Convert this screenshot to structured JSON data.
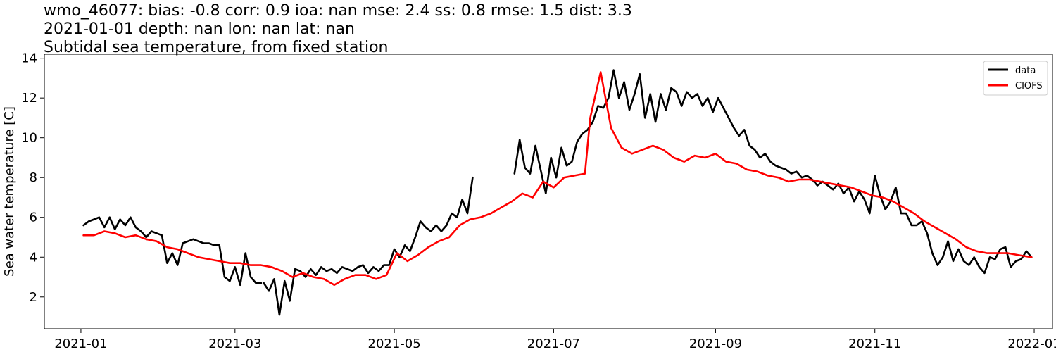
{
  "chart_data": {
    "type": "line",
    "title_lines": [
      "wmo_46077: bias: -0.8  corr: 0.9  ioa: nan  mse: 2.4  ss: 0.8  rmse: 1.5  dist: 3.3",
      "2021-01-01 depth: nan lon: nan lat: nan",
      "Subtidal sea temperature, from fixed station"
    ],
    "xlabel": "",
    "ylabel": "Sea water temperature [C]",
    "x_range": [
      "2020-12-18",
      "2022-01-08"
    ],
    "ylim": [
      0.4,
      14.2
    ],
    "y_ticks": [
      2,
      4,
      6,
      8,
      10,
      12,
      14
    ],
    "x_ticks": [
      "2021-01-01",
      "2021-03-01",
      "2021-05-01",
      "2021-07-01",
      "2021-09-01",
      "2021-11-01",
      "2022-01-01"
    ],
    "x_tick_labels": [
      "2021-01",
      "2021-03",
      "2021-05",
      "2021-07",
      "2021-09",
      "2021-11",
      "2022-01"
    ],
    "grid": false,
    "legend_position": "top-right",
    "series": [
      {
        "name": "data",
        "color": "#000000",
        "segments": [
          {
            "x": [
              "2021-01-02",
              "2021-01-04",
              "2021-01-06",
              "2021-01-08",
              "2021-01-10",
              "2021-01-12",
              "2021-01-14",
              "2021-01-16",
              "2021-01-18",
              "2021-01-20",
              "2021-01-22",
              "2021-01-24",
              "2021-01-26",
              "2021-01-28",
              "2021-01-30",
              "2021-02-01",
              "2021-02-03",
              "2021-02-05",
              "2021-02-07",
              "2021-02-09",
              "2021-02-11",
              "2021-02-13",
              "2021-02-15",
              "2021-02-17",
              "2021-02-19",
              "2021-02-21",
              "2021-02-23",
              "2021-02-25",
              "2021-02-27",
              "2021-03-01",
              "2021-03-03",
              "2021-03-05",
              "2021-03-07",
              "2021-03-09",
              "2021-03-11"
            ],
            "y": [
              5.6,
              5.8,
              5.9,
              6.0,
              5.5,
              6.0,
              5.4,
              5.9,
              5.6,
              6.0,
              5.5,
              5.3,
              5.0,
              5.3,
              5.2,
              5.1,
              3.7,
              4.2,
              3.6,
              4.7,
              4.8,
              4.9,
              4.8,
              4.7,
              4.7,
              4.6,
              4.6,
              3.0,
              2.8,
              3.5,
              2.6,
              4.2,
              3.0,
              2.7,
              2.7
            ]
          },
          {
            "x": [
              "2021-03-12",
              "2021-03-14",
              "2021-03-16",
              "2021-03-18",
              "2021-03-20",
              "2021-03-22",
              "2021-03-24",
              "2021-03-26",
              "2021-03-28",
              "2021-03-30",
              "2021-04-01",
              "2021-04-03",
              "2021-04-05",
              "2021-04-07",
              "2021-04-09",
              "2021-04-11",
              "2021-04-13",
              "2021-04-15",
              "2021-04-17",
              "2021-04-19",
              "2021-04-21",
              "2021-04-23",
              "2021-04-25",
              "2021-04-27",
              "2021-04-29",
              "2021-05-01",
              "2021-05-03",
              "2021-05-05",
              "2021-05-07",
              "2021-05-09",
              "2021-05-11",
              "2021-05-13",
              "2021-05-15",
              "2021-05-17",
              "2021-05-19",
              "2021-05-21",
              "2021-05-23",
              "2021-05-25",
              "2021-05-27",
              "2021-05-29",
              "2021-05-31"
            ],
            "y": [
              2.7,
              2.3,
              2.9,
              1.1,
              2.8,
              1.8,
              3.4,
              3.3,
              3.0,
              3.4,
              3.1,
              3.5,
              3.3,
              3.4,
              3.2,
              3.5,
              3.4,
              3.3,
              3.5,
              3.6,
              3.2,
              3.5,
              3.3,
              3.6,
              3.6,
              4.4,
              4.0,
              4.6,
              4.3,
              5.0,
              5.8,
              5.5,
              5.3,
              5.6,
              5.3,
              5.6,
              6.2,
              6.0,
              6.9,
              6.2,
              8.0
            ]
          },
          {
            "x": [
              "2021-06-16",
              "2021-06-18",
              "2021-06-20",
              "2021-06-22",
              "2021-06-24",
              "2021-06-26",
              "2021-06-28",
              "2021-06-30",
              "2021-07-02",
              "2021-07-04",
              "2021-07-06",
              "2021-07-08",
              "2021-07-10",
              "2021-07-12",
              "2021-07-14",
              "2021-07-16",
              "2021-07-18",
              "2021-07-20",
              "2021-07-22",
              "2021-07-24",
              "2021-07-26",
              "2021-07-28",
              "2021-07-30",
              "2021-08-01",
              "2021-08-03",
              "2021-08-05",
              "2021-08-07",
              "2021-08-09",
              "2021-08-11",
              "2021-08-13",
              "2021-08-15",
              "2021-08-17",
              "2021-08-19",
              "2021-08-21",
              "2021-08-23",
              "2021-08-25",
              "2021-08-27",
              "2021-08-29",
              "2021-08-31",
              "2021-09-02",
              "2021-09-04",
              "2021-09-06",
              "2021-09-08",
              "2021-09-10",
              "2021-09-12",
              "2021-09-14",
              "2021-09-16",
              "2021-09-18",
              "2021-09-20",
              "2021-09-22",
              "2021-09-24",
              "2021-09-26",
              "2021-09-28",
              "2021-09-30",
              "2021-10-02",
              "2021-10-04",
              "2021-10-06",
              "2021-10-08",
              "2021-10-10",
              "2021-10-12",
              "2021-10-14",
              "2021-10-16",
              "2021-10-18",
              "2021-10-20",
              "2021-10-22",
              "2021-10-24",
              "2021-10-26",
              "2021-10-28",
              "2021-10-30",
              "2021-11-01",
              "2021-11-03",
              "2021-11-05",
              "2021-11-07",
              "2021-11-09",
              "2021-11-11",
              "2021-11-13",
              "2021-11-15",
              "2021-11-17",
              "2021-11-19",
              "2021-11-21",
              "2021-11-23",
              "2021-11-25",
              "2021-11-27",
              "2021-11-29",
              "2021-12-01",
              "2021-12-03",
              "2021-12-05",
              "2021-12-07",
              "2021-12-09",
              "2021-12-11",
              "2021-12-13",
              "2021-12-15",
              "2021-12-17",
              "2021-12-19",
              "2021-12-21",
              "2021-12-23",
              "2021-12-25",
              "2021-12-27",
              "2021-12-29",
              "2021-12-31"
            ],
            "y": [
              8.2,
              9.9,
              8.5,
              8.2,
              9.6,
              8.4,
              7.2,
              9.0,
              8.0,
              9.5,
              8.6,
              8.8,
              9.8,
              10.2,
              10.4,
              10.8,
              11.6,
              11.5,
              12.0,
              13.4,
              12.0,
              12.8,
              11.4,
              12.2,
              13.2,
              11.0,
              12.2,
              10.8,
              12.2,
              11.4,
              12.5,
              12.3,
              11.6,
              12.3,
              12.0,
              12.2,
              11.6,
              12.0,
              11.3,
              12.0,
              11.5,
              11.0,
              10.5,
              10.1,
              10.4,
              9.6,
              9.4,
              9.0,
              9.2,
              8.8,
              8.6,
              8.5,
              8.4,
              8.2,
              8.3,
              8.0,
              8.1,
              7.9,
              7.6,
              7.8,
              7.6,
              7.4,
              7.7,
              7.2,
              7.5,
              6.8,
              7.3,
              6.9,
              6.2,
              8.1,
              7.1,
              6.4,
              6.8,
              7.5,
              6.2,
              6.2,
              5.6,
              5.6,
              5.8,
              5.2,
              4.2,
              3.6,
              4.0,
              4.8,
              3.8,
              4.4,
              3.8,
              3.6,
              4.0,
              3.5,
              3.2,
              4.0,
              3.9,
              4.4,
              4.5,
              3.5,
              3.8,
              3.9,
              4.3,
              4.0
            ]
          }
        ]
      },
      {
        "name": "CIOFS",
        "color": "#ff0000",
        "segments": [
          {
            "x": [
              "2021-01-02",
              "2021-01-06",
              "2021-01-10",
              "2021-01-14",
              "2021-01-18",
              "2021-01-22",
              "2021-01-26",
              "2021-01-30",
              "2021-02-03",
              "2021-02-07",
              "2021-02-11",
              "2021-02-15",
              "2021-02-19",
              "2021-02-23",
              "2021-02-27",
              "2021-03-03",
              "2021-03-07",
              "2021-03-11",
              "2021-03-15",
              "2021-03-19",
              "2021-03-23",
              "2021-03-27",
              "2021-03-31",
              "2021-04-04",
              "2021-04-08",
              "2021-04-12",
              "2021-04-16",
              "2021-04-20",
              "2021-04-24",
              "2021-04-28",
              "2021-05-02",
              "2021-05-06",
              "2021-05-10",
              "2021-05-14",
              "2021-05-18",
              "2021-05-22",
              "2021-05-26",
              "2021-05-30",
              "2021-06-03",
              "2021-06-07",
              "2021-06-11",
              "2021-06-15",
              "2021-06-19",
              "2021-06-23",
              "2021-06-27",
              "2021-07-01",
              "2021-07-05",
              "2021-07-09",
              "2021-07-13",
              "2021-07-15",
              "2021-07-19",
              "2021-07-23",
              "2021-07-27",
              "2021-07-31",
              "2021-08-04",
              "2021-08-08",
              "2021-08-12",
              "2021-08-16",
              "2021-08-20",
              "2021-08-24",
              "2021-08-28",
              "2021-09-01",
              "2021-09-05",
              "2021-09-09",
              "2021-09-13",
              "2021-09-17",
              "2021-09-21",
              "2021-09-25",
              "2021-09-29",
              "2021-10-03",
              "2021-10-07",
              "2021-10-11",
              "2021-10-15",
              "2021-10-19",
              "2021-10-23",
              "2021-10-27",
              "2021-10-31",
              "2021-11-04",
              "2021-11-08",
              "2021-11-12",
              "2021-11-16",
              "2021-11-20",
              "2021-11-24",
              "2021-11-28",
              "2021-12-02",
              "2021-12-06",
              "2021-12-10",
              "2021-12-14",
              "2021-12-18",
              "2021-12-22",
              "2021-12-26",
              "2021-12-31"
            ],
            "y": [
              5.1,
              5.1,
              5.3,
              5.2,
              5.0,
              5.1,
              4.9,
              4.8,
              4.5,
              4.4,
              4.2,
              4.0,
              3.9,
              3.8,
              3.7,
              3.7,
              3.6,
              3.6,
              3.5,
              3.3,
              3.0,
              3.2,
              3.0,
              2.9,
              2.6,
              2.9,
              3.1,
              3.1,
              2.9,
              3.1,
              4.2,
              3.8,
              4.1,
              4.5,
              4.8,
              5.0,
              5.6,
              5.9,
              6.0,
              6.2,
              6.5,
              6.8,
              7.2,
              7.0,
              7.8,
              7.5,
              8.0,
              8.1,
              8.2,
              11.0,
              13.3,
              10.5,
              9.5,
              9.2,
              9.4,
              9.6,
              9.4,
              9.0,
              8.8,
              9.1,
              9.0,
              9.2,
              8.8,
              8.7,
              8.4,
              8.3,
              8.1,
              8.0,
              7.8,
              7.9,
              7.9,
              7.8,
              7.7,
              7.6,
              7.5,
              7.3,
              7.1,
              7.0,
              6.8,
              6.5,
              6.2,
              5.8,
              5.5,
              5.2,
              4.9,
              4.5,
              4.3,
              4.2,
              4.2,
              4.2,
              4.1,
              4.0
            ]
          }
        ]
      }
    ]
  }
}
